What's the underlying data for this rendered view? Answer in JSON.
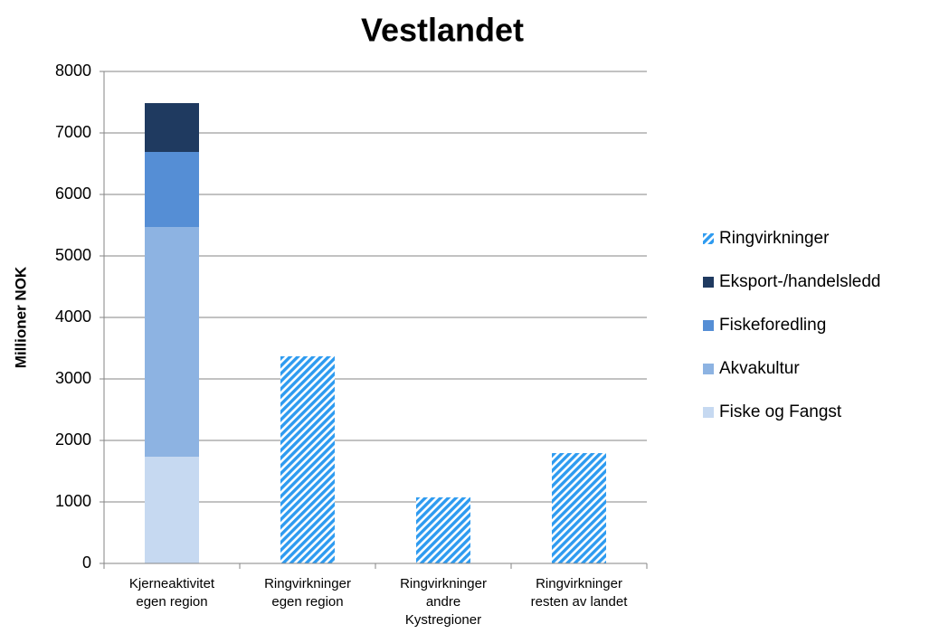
{
  "chart_data": {
    "type": "stacked_bar",
    "title": "Vestlandet",
    "y_label": "Millioner NOK",
    "categories": [
      "Kjerneaktivitet egen region",
      "Ringvirkninger egen region",
      "Ringvirkninger andre Kystregioner",
      "Ringvirkninger resten av landet"
    ],
    "series": [
      {
        "name": "Fiske og Fangst",
        "color": "#c6d9f1",
        "values": [
          1735,
          null,
          null,
          null
        ]
      },
      {
        "name": "Akvakultur",
        "color": "#8db3e2",
        "values": [
          3735,
          null,
          null,
          null
        ]
      },
      {
        "name": "Fiskeforedling",
        "color": "#558ed5",
        "values": [
          1221,
          null,
          null,
          null
        ]
      },
      {
        "name": "Eksport-/handelsledd",
        "color": "#1f3a60",
        "values": [
          794,
          null,
          null,
          null
        ]
      },
      {
        "name": "Ringvirkninger",
        "color": "#2e9bf0",
        "pattern": "hatch",
        "values": [
          null,
          3368,
          1074,
          1794
        ]
      }
    ],
    "ylim": [
      0,
      8000
    ],
    "yticks": [
      0,
      1000,
      2000,
      3000,
      4000,
      5000,
      6000,
      7000,
      8000
    ],
    "grid": true,
    "legend": "right"
  }
}
